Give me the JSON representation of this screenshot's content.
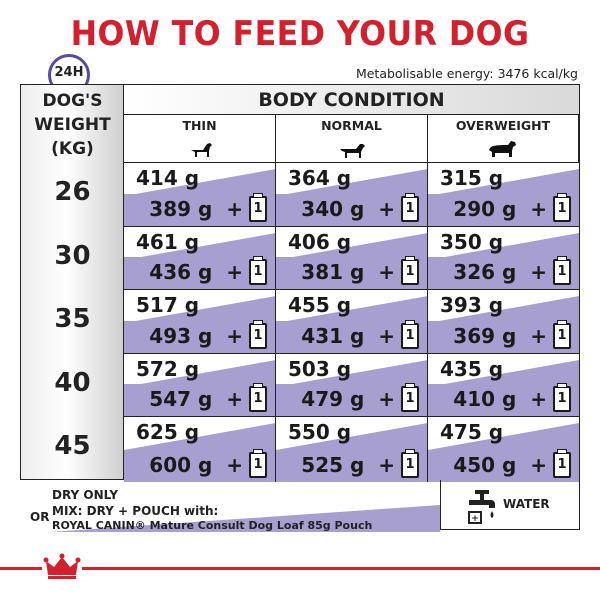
{
  "title": "HOW TO FEED YOUR DOG",
  "clock_label": "24H",
  "energy": "Metabolisable energy: 3476 kcal/kg",
  "weight_header_lines": [
    "DOG'S",
    "WEIGHT",
    "(KG)"
  ],
  "body_condition": "BODY CONDITION",
  "columns": [
    "THIN",
    "NORMAL",
    "OVERWEIGHT"
  ],
  "pouch_count": "1",
  "rows": [
    {
      "weight": "26",
      "cells": [
        {
          "dry": "414 g",
          "mix": "389 g  +"
        },
        {
          "dry": "364 g",
          "mix": "340 g  +"
        },
        {
          "dry": "315 g",
          "mix": "290 g  +"
        }
      ]
    },
    {
      "weight": "30",
      "cells": [
        {
          "dry": "461 g",
          "mix": "436 g  +"
        },
        {
          "dry": "406 g",
          "mix": "381 g  +"
        },
        {
          "dry": "350 g",
          "mix": "326 g  +"
        }
      ]
    },
    {
      "weight": "35",
      "cells": [
        {
          "dry": "517 g",
          "mix": "493 g  +"
        },
        {
          "dry": "455 g",
          "mix": "431 g  +"
        },
        {
          "dry": "393 g",
          "mix": "369 g  +"
        }
      ]
    },
    {
      "weight": "40",
      "cells": [
        {
          "dry": "572 g",
          "mix": "547 g  +"
        },
        {
          "dry": "503 g",
          "mix": "479 g  +"
        },
        {
          "dry": "435 g",
          "mix": "410 g  +"
        }
      ]
    },
    {
      "weight": "45",
      "cells": [
        {
          "dry": "625 g",
          "mix": "600 g  +"
        },
        {
          "dry": "550 g",
          "mix": "525 g  +"
        },
        {
          "dry": "475 g",
          "mix": "450 g  +"
        }
      ]
    }
  ],
  "legend": {
    "dry_only": "DRY ONLY",
    "or": "OR",
    "mix_line1": "MIX: DRY + POUCH with:",
    "mix_line2": "ROYAL CANIN® Mature Consult Dog Loaf 85g Pouch",
    "water": "WATER"
  },
  "colors": {
    "brand_red": "#d3202e",
    "mix_band": "#a79fcf",
    "clock_purple": "#5b4b9a"
  }
}
